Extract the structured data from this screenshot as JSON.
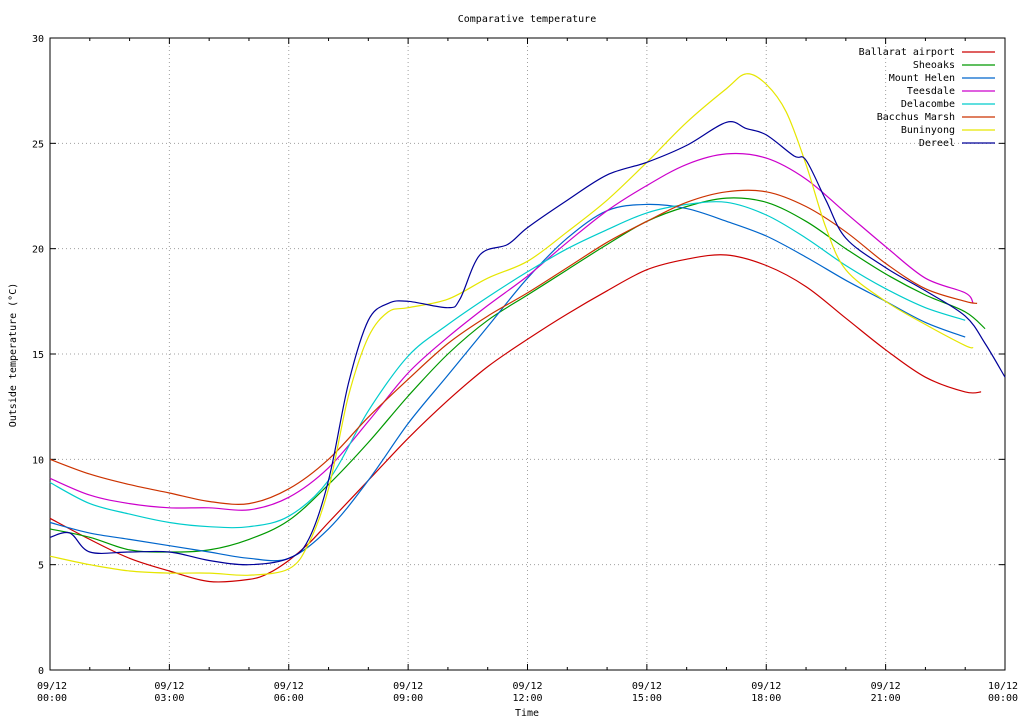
{
  "chart_data": {
    "type": "line",
    "title": "Comparative temperature",
    "xlabel": "Time",
    "ylabel": "Outside temperature (°C)",
    "xlim": [
      0,
      24
    ],
    "ylim": [
      0,
      30
    ],
    "grid": true,
    "legend_position": "top-right",
    "x_ticks": [
      {
        "x": 0,
        "label": [
          "09/12",
          "00:00"
        ]
      },
      {
        "x": 3,
        "label": [
          "09/12",
          "03:00"
        ]
      },
      {
        "x": 6,
        "label": [
          "09/12",
          "06:00"
        ]
      },
      {
        "x": 9,
        "label": [
          "09/12",
          "09:00"
        ]
      },
      {
        "x": 12,
        "label": [
          "09/12",
          "12:00"
        ]
      },
      {
        "x": 15,
        "label": [
          "09/12",
          "15:00"
        ]
      },
      {
        "x": 18,
        "label": [
          "09/12",
          "18:00"
        ]
      },
      {
        "x": 21,
        "label": [
          "09/12",
          "21:00"
        ]
      },
      {
        "x": 24,
        "label": [
          "10/12",
          "00:00"
        ]
      }
    ],
    "y_ticks": [
      0,
      5,
      10,
      15,
      20,
      25,
      30
    ],
    "series": [
      {
        "name": "Ballarat airport",
        "color": "#cc0000",
        "points": [
          [
            0,
            7.2
          ],
          [
            1,
            6.2
          ],
          [
            2,
            5.3
          ],
          [
            3,
            4.7
          ],
          [
            4,
            4.2
          ],
          [
            5,
            4.3
          ],
          [
            5.5,
            4.6
          ],
          [
            6,
            5.2
          ],
          [
            6.5,
            6.0
          ],
          [
            7,
            7.0
          ],
          [
            8,
            9.0
          ],
          [
            9,
            11.0
          ],
          [
            10,
            12.8
          ],
          [
            11,
            14.4
          ],
          [
            12,
            15.7
          ],
          [
            13,
            16.9
          ],
          [
            14,
            18.0
          ],
          [
            15,
            19.0
          ],
          [
            16,
            19.5
          ],
          [
            17,
            19.7
          ],
          [
            18,
            19.2
          ],
          [
            19,
            18.2
          ],
          [
            20,
            16.7
          ],
          [
            21,
            15.2
          ],
          [
            22,
            13.9
          ],
          [
            23,
            13.2
          ],
          [
            23.4,
            13.2
          ]
        ]
      },
      {
        "name": "Sheoaks",
        "color": "#009900",
        "points": [
          [
            0,
            6.7
          ],
          [
            1,
            6.3
          ],
          [
            2,
            5.7
          ],
          [
            3,
            5.6
          ],
          [
            4,
            5.7
          ],
          [
            5,
            6.2
          ],
          [
            6,
            7.1
          ],
          [
            7,
            8.8
          ],
          [
            8,
            10.8
          ],
          [
            9,
            13.0
          ],
          [
            10,
            15.0
          ],
          [
            11,
            16.6
          ],
          [
            12,
            17.8
          ],
          [
            13,
            19.0
          ],
          [
            14,
            20.2
          ],
          [
            15,
            21.3
          ],
          [
            16,
            22.0
          ],
          [
            17,
            22.4
          ],
          [
            18,
            22.2
          ],
          [
            19,
            21.3
          ],
          [
            20,
            20.0
          ],
          [
            21,
            18.8
          ],
          [
            22,
            17.8
          ],
          [
            23,
            17.0
          ],
          [
            23.5,
            16.2
          ]
        ]
      },
      {
        "name": "Mount Helen",
        "color": "#0066cc",
        "points": [
          [
            0,
            7.0
          ],
          [
            1,
            6.5
          ],
          [
            2,
            6.2
          ],
          [
            3,
            5.9
          ],
          [
            4,
            5.6
          ],
          [
            5,
            5.3
          ],
          [
            6,
            5.3
          ],
          [
            7,
            6.7
          ],
          [
            8,
            9.0
          ],
          [
            9,
            11.7
          ],
          [
            10,
            14.0
          ],
          [
            11,
            16.3
          ],
          [
            12,
            18.6
          ],
          [
            13,
            20.5
          ],
          [
            14,
            21.8
          ],
          [
            15,
            22.1
          ],
          [
            16,
            21.9
          ],
          [
            17,
            21.3
          ],
          [
            18,
            20.6
          ],
          [
            19,
            19.6
          ],
          [
            20,
            18.5
          ],
          [
            21,
            17.5
          ],
          [
            22,
            16.5
          ],
          [
            23,
            15.8
          ]
        ]
      },
      {
        "name": "Teesdale",
        "color": "#cc00cc",
        "points": [
          [
            0,
            9.1
          ],
          [
            1,
            8.3
          ],
          [
            2,
            7.9
          ],
          [
            3,
            7.7
          ],
          [
            4,
            7.7
          ],
          [
            5,
            7.6
          ],
          [
            6,
            8.2
          ],
          [
            7,
            9.6
          ],
          [
            8,
            11.8
          ],
          [
            9,
            14.1
          ],
          [
            10,
            15.8
          ],
          [
            11,
            17.3
          ],
          [
            12,
            18.7
          ],
          [
            13,
            20.3
          ],
          [
            14,
            21.8
          ],
          [
            15,
            23.0
          ],
          [
            16,
            24.0
          ],
          [
            17,
            24.5
          ],
          [
            18,
            24.3
          ],
          [
            19,
            23.3
          ],
          [
            20,
            21.7
          ],
          [
            21,
            20.1
          ],
          [
            22,
            18.6
          ],
          [
            23,
            17.9
          ],
          [
            23.2,
            17.4
          ]
        ]
      },
      {
        "name": "Delacombe",
        "color": "#00cccc",
        "points": [
          [
            0,
            8.9
          ],
          [
            1,
            7.9
          ],
          [
            2,
            7.4
          ],
          [
            3,
            7.0
          ],
          [
            4,
            6.8
          ],
          [
            5,
            6.8
          ],
          [
            6,
            7.3
          ],
          [
            7,
            9.0
          ],
          [
            8,
            12.3
          ],
          [
            9,
            14.9
          ],
          [
            10,
            16.4
          ],
          [
            11,
            17.7
          ],
          [
            12,
            18.9
          ],
          [
            13,
            20.0
          ],
          [
            14,
            20.9
          ],
          [
            15,
            21.7
          ],
          [
            16,
            22.1
          ],
          [
            17,
            22.2
          ],
          [
            18,
            21.6
          ],
          [
            19,
            20.5
          ],
          [
            20,
            19.2
          ],
          [
            21,
            18.1
          ],
          [
            22,
            17.2
          ],
          [
            23,
            16.6
          ]
        ]
      },
      {
        "name": "Bacchus Marsh",
        "color": "#cc3300",
        "points": [
          [
            0,
            10.0
          ],
          [
            1,
            9.3
          ],
          [
            2,
            8.8
          ],
          [
            3,
            8.4
          ],
          [
            4,
            8.0
          ],
          [
            5,
            7.9
          ],
          [
            6,
            8.6
          ],
          [
            7,
            10.0
          ],
          [
            8,
            12.0
          ],
          [
            9,
            13.8
          ],
          [
            10,
            15.5
          ],
          [
            11,
            16.8
          ],
          [
            12,
            17.9
          ],
          [
            13,
            19.1
          ],
          [
            14,
            20.3
          ],
          [
            15,
            21.3
          ],
          [
            16,
            22.2
          ],
          [
            17,
            22.7
          ],
          [
            18,
            22.7
          ],
          [
            19,
            22.0
          ],
          [
            20,
            20.8
          ],
          [
            21,
            19.3
          ],
          [
            22,
            18.1
          ],
          [
            23,
            17.5
          ],
          [
            23.3,
            17.4
          ]
        ]
      },
      {
        "name": "Buninyong",
        "color": "#e6e600",
        "points": [
          [
            0,
            5.4
          ],
          [
            1,
            5.0
          ],
          [
            2,
            4.7
          ],
          [
            3,
            4.6
          ],
          [
            4,
            4.6
          ],
          [
            5,
            4.5
          ],
          [
            6,
            4.8
          ],
          [
            6.5,
            6.0
          ],
          [
            7,
            8.6
          ],
          [
            7.5,
            13.0
          ],
          [
            8,
            15.8
          ],
          [
            8.5,
            17.0
          ],
          [
            9,
            17.2
          ],
          [
            10,
            17.6
          ],
          [
            11,
            18.6
          ],
          [
            12,
            19.4
          ],
          [
            13,
            20.8
          ],
          [
            14,
            22.3
          ],
          [
            15,
            24.1
          ],
          [
            16,
            26.0
          ],
          [
            17,
            27.6
          ],
          [
            17.5,
            28.3
          ],
          [
            18,
            27.8
          ],
          [
            18.5,
            26.5
          ],
          [
            19,
            24.0
          ],
          [
            19.5,
            21.0
          ],
          [
            20,
            19.0
          ],
          [
            21,
            17.5
          ],
          [
            22,
            16.4
          ],
          [
            23,
            15.4
          ],
          [
            23.2,
            15.3
          ]
        ]
      },
      {
        "name": "Dereel",
        "color": "#000099",
        "points": [
          [
            0,
            6.3
          ],
          [
            0.5,
            6.5
          ],
          [
            1,
            5.6
          ],
          [
            2,
            5.6
          ],
          [
            3,
            5.6
          ],
          [
            4,
            5.2
          ],
          [
            5,
            5.0
          ],
          [
            6,
            5.3
          ],
          [
            6.5,
            6.2
          ],
          [
            7,
            9.0
          ],
          [
            7.5,
            13.6
          ],
          [
            8,
            16.6
          ],
          [
            8.5,
            17.4
          ],
          [
            9,
            17.5
          ],
          [
            10,
            17.2
          ],
          [
            10.3,
            17.6
          ],
          [
            10.8,
            19.7
          ],
          [
            11.5,
            20.2
          ],
          [
            12,
            21.0
          ],
          [
            13,
            22.3
          ],
          [
            14,
            23.5
          ],
          [
            15,
            24.1
          ],
          [
            16,
            24.9
          ],
          [
            17,
            26.0
          ],
          [
            17.5,
            25.7
          ],
          [
            18,
            25.4
          ],
          [
            18.7,
            24.4
          ],
          [
            19,
            24.2
          ],
          [
            19.5,
            22.3
          ],
          [
            20,
            20.5
          ],
          [
            21,
            19.1
          ],
          [
            22,
            18.0
          ],
          [
            23,
            16.8
          ],
          [
            23.5,
            15.5
          ],
          [
            24,
            13.9
          ]
        ]
      }
    ]
  }
}
